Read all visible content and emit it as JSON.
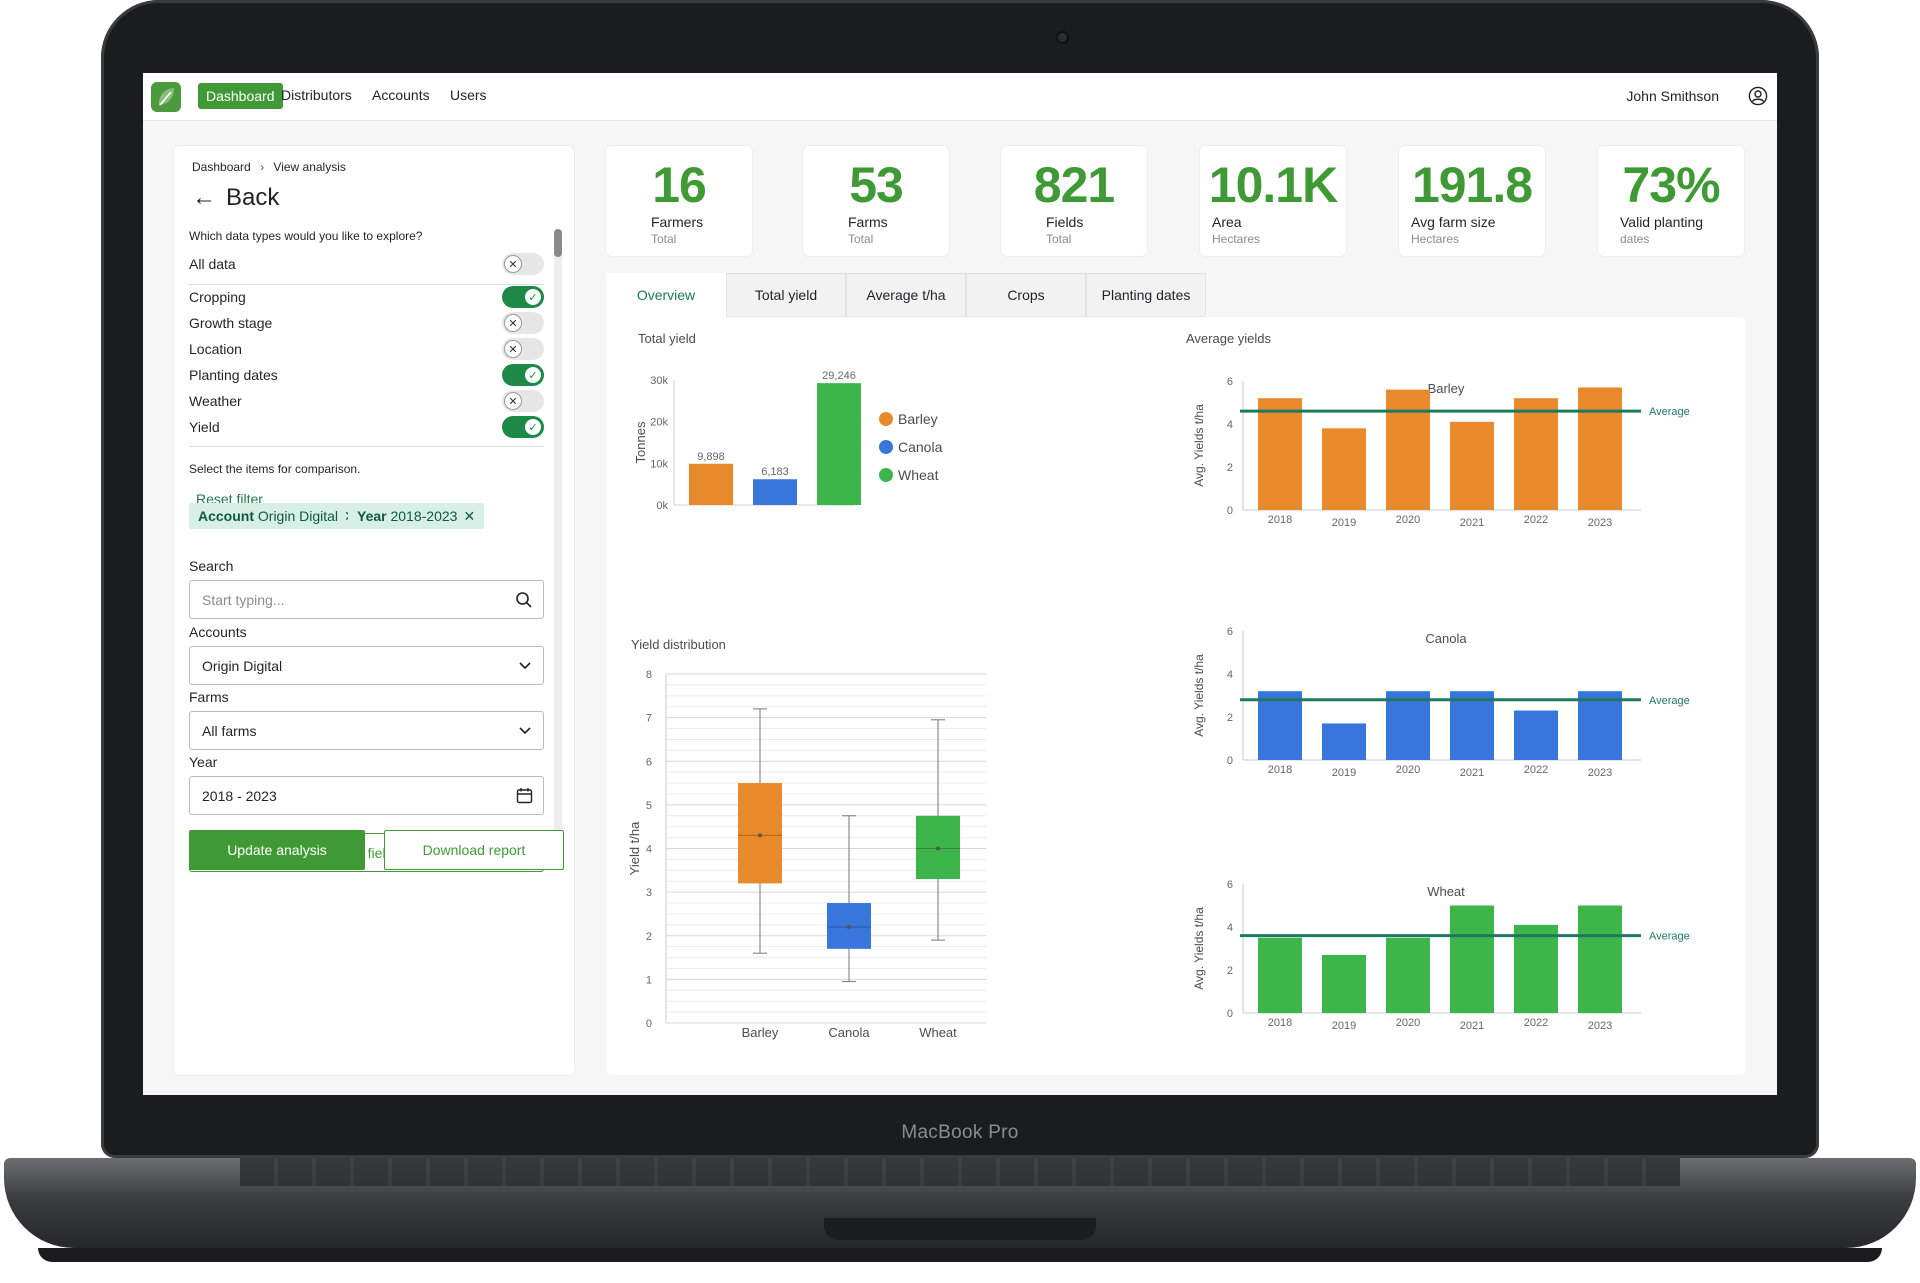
{
  "device": {
    "brand": "MacBook Pro"
  },
  "nav": {
    "items": [
      "Dashboard",
      "Distributors",
      "Accounts",
      "Users"
    ],
    "active": "Dashboard",
    "user_name": "John Smithson"
  },
  "panel": {
    "breadcrumb": [
      "Dashboard",
      "View analysis"
    ],
    "back_label": "Back",
    "question": "Which data types would you like to explore?",
    "toggles": [
      {
        "label": "All data",
        "on": false
      },
      {
        "label": "Cropping",
        "on": true
      },
      {
        "label": "Growth stage",
        "on": false
      },
      {
        "label": "Location",
        "on": false
      },
      {
        "label": "Planting dates",
        "on": true
      },
      {
        "label": "Weather",
        "on": false
      },
      {
        "label": "Yield",
        "on": true
      }
    ],
    "compare_text": "Select the items for comparison.",
    "reset_filter": "Reset filter",
    "chips": [
      {
        "key": "Account",
        "value": "Origin Digital"
      },
      {
        "key": "Year",
        "value": "2018-2023"
      }
    ],
    "search_label": "Search",
    "search_placeholder": "Start typing...",
    "accounts_label": "Accounts",
    "accounts_value": "Origin Digital",
    "farms_label": "Farms",
    "farms_value": "All farms",
    "year_label": "Year",
    "year_value": "2018 - 2023",
    "filter_button": "Filter fields",
    "update_button": "Update analysis",
    "download_button": "Download report"
  },
  "kpis": [
    {
      "value": "16",
      "title": "Farmers",
      "sub": "Total"
    },
    {
      "value": "53",
      "title": "Farms",
      "sub": "Total"
    },
    {
      "value": "821",
      "title": "Fields",
      "sub": "Total"
    },
    {
      "value": "10.1K",
      "title": "Area",
      "sub": "Hectares"
    },
    {
      "value": "191.8",
      "title": "Avg farm size",
      "sub": "Hectares"
    },
    {
      "value": "73%",
      "title": "Valid planting",
      "sub": "dates"
    }
  ],
  "tabs": [
    "Overview",
    "Total yield",
    "Average t/ha",
    "Crops",
    "Planting dates"
  ],
  "active_tab": "Overview",
  "colors": {
    "barley": "#e8892c",
    "canola": "#3876dc",
    "wheat": "#3cb54a",
    "average_line": "#1d7a5e",
    "accent": "#3f9a36"
  },
  "chart_data": [
    {
      "type": "bar",
      "title": "Total yield",
      "ylabel": "Tonnes",
      "categories": [
        "Barley",
        "Canola",
        "Wheat"
      ],
      "values": [
        9898,
        6183,
        29246
      ],
      "data_labels": [
        "9,898",
        "6,183",
        "29,246"
      ],
      "yticks": [
        "0k",
        "10k",
        "20k",
        "30k"
      ],
      "ylim": [
        0,
        30000
      ],
      "legend": [
        "Barley",
        "Canola",
        "Wheat"
      ],
      "legend_position": "right"
    },
    {
      "type": "box",
      "title": "Yield distribution",
      "ylabel": "Yield t/ha",
      "ylim": [
        0,
        8
      ],
      "categories": [
        "Barley",
        "Canola",
        "Wheat"
      ],
      "boxes": [
        {
          "min": 1.6,
          "q1": 3.2,
          "median": 4.3,
          "mean": 4.3,
          "q3": 5.5,
          "max": 7.2
        },
        {
          "min": 0.95,
          "q1": 1.7,
          "median": 2.2,
          "mean": 2.2,
          "q3": 2.75,
          "max": 4.75
        },
        {
          "min": 1.9,
          "q1": 3.3,
          "median": 4.0,
          "mean": 4.0,
          "q3": 4.75,
          "max": 6.95
        }
      ]
    },
    {
      "type": "bar",
      "group_title": "Average yields",
      "title": "Barley",
      "ylabel": "Avg. Yields t/ha",
      "ylim": [
        0,
        6
      ],
      "categories": [
        "2018",
        "2019",
        "2020",
        "2021",
        "2022",
        "2023"
      ],
      "values": [
        5.2,
        3.8,
        5.6,
        4.1,
        5.2,
        5.7
      ],
      "average": 4.6,
      "average_label": "Average"
    },
    {
      "type": "bar",
      "title": "Canola",
      "ylabel": "Avg. Yields t/ha",
      "ylim": [
        0,
        6
      ],
      "categories": [
        "2018",
        "2019",
        "2020",
        "2021",
        "2022",
        "2023"
      ],
      "values": [
        3.2,
        1.7,
        3.2,
        3.2,
        2.3,
        3.2
      ],
      "average": 2.8,
      "average_label": "Average"
    },
    {
      "type": "bar",
      "title": "Wheat",
      "ylabel": "Avg. Yields t/ha",
      "ylim": [
        0,
        6
      ],
      "categories": [
        "2018",
        "2019",
        "2020",
        "2021",
        "2022",
        "2023"
      ],
      "values": [
        3.5,
        2.7,
        3.5,
        5.0,
        4.1,
        5.0
      ],
      "average": 3.6,
      "average_label": "Average"
    }
  ]
}
